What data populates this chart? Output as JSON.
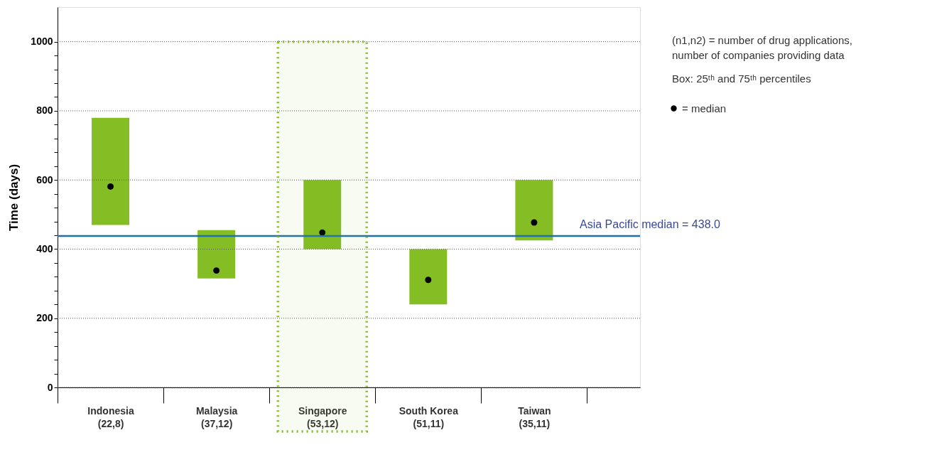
{
  "chart_data": {
    "type": "bar",
    "ylabel": "Time (days)",
    "categories": [
      "Indonesia\n(22,8)",
      "Malaysia\n(37,12)",
      "Singapore\n(53,12)",
      "South Korea\n(51,11)",
      "Taiwan\n(35,11)"
    ],
    "series": [
      {
        "color": "#84bd24",
        "base": [
          470,
          315,
          400,
          240,
          425
        ],
        "values": [
          310,
          140,
          200,
          160,
          175
        ]
      },
      {
        "type": "scatter",
        "name": "= median",
        "color": "#000000",
        "marker": "circle",
        "values": [
          581,
          338,
          448,
          311,
          477
        ]
      }
    ],
    "ylim": [
      0,
      1100
    ],
    "yticks": [
      0,
      {
        "value": 40,
        "label": null
      },
      {
        "value": 80,
        "label": null
      },
      {
        "value": 120,
        "label": null
      },
      {
        "value": 160,
        "label": null
      },
      200,
      {
        "value": 240,
        "label": null
      },
      {
        "value": 280,
        "label": null
      },
      {
        "value": 320,
        "label": null
      },
      {
        "value": 360,
        "label": null
      },
      400,
      {
        "value": 440,
        "label": null
      },
      {
        "value": 480,
        "label": null
      },
      {
        "value": 520,
        "label": null
      },
      {
        "value": 560,
        "label": null
      },
      600,
      {
        "value": 640,
        "label": null
      },
      {
        "value": 680,
        "label": null
      },
      {
        "value": 720,
        "label": null
      },
      {
        "value": 760,
        "label": null
      },
      800,
      {
        "value": 840,
        "label": null
      },
      {
        "value": 880,
        "label": null
      },
      {
        "value": 920,
        "label": null
      },
      {
        "value": 960,
        "label": null
      },
      1000
    ],
    "grid": "y",
    "ref_lines": [
      {
        "axis": "y",
        "value": 438,
        "label": "Asia Pacific median = 438.0",
        "color": "#1f6fa8"
      }
    ],
    "bands": [
      {
        "axis": "x",
        "from": "Singapore\n(53,12)",
        "to": "Singapore\n(53,12)",
        "color": "#84bd24"
      }
    ],
    "legend": "top right",
    "annotations": [
      "(n1,n2) = number of drug applications,\nnumber of companies providing data",
      "Box: 25ᵗʰ and 75ᵗʰ percentiles"
    ]
  }
}
